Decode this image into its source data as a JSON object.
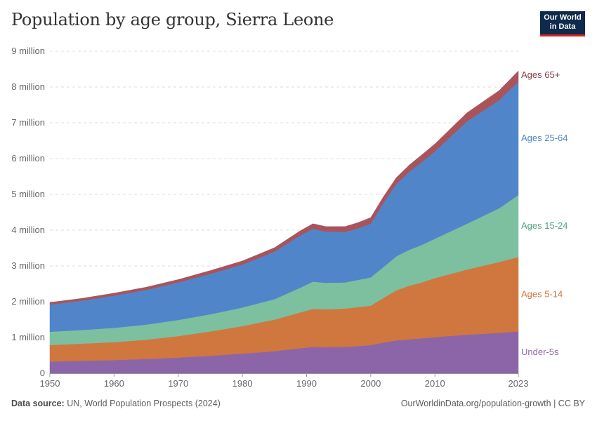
{
  "header": {
    "title": "Population by age group, Sierra Leone",
    "logo_line1": "Our World",
    "logo_line2": "in Data"
  },
  "footer": {
    "source_label": "Data source:",
    "source_text": "UN, World Population Prospects (2024)",
    "url": "OurWorldinData.org/population-growth | CC BY"
  },
  "colors": {
    "under5": "#8c65a8",
    "ages5_14": "#d0773f",
    "ages15_24": "#7cc0a0",
    "ages25_64": "#5086c9",
    "ages65": "#a8545a"
  },
  "chart_data": {
    "type": "area",
    "stacked": true,
    "title": "Population by age group, Sierra Leone",
    "x": [
      1950,
      1955,
      1960,
      1965,
      1970,
      1975,
      1980,
      1985,
      1989,
      1991,
      1993,
      1996,
      1998,
      2000,
      2002,
      2004,
      2006,
      2008,
      2010,
      2015,
      2020,
      2023
    ],
    "x_ticks": [
      1950,
      1960,
      1970,
      1980,
      1990,
      2000,
      2010,
      2023
    ],
    "y_ticks": [
      0,
      1000000,
      2000000,
      3000000,
      4000000,
      5000000,
      6000000,
      7000000,
      8000000,
      9000000
    ],
    "y_tick_labels": [
      "0",
      "1 million",
      "2 million",
      "3 million",
      "4 million",
      "5 million",
      "6 million",
      "7 million",
      "8 million",
      "9 million"
    ],
    "ylim": [
      0,
      9000000
    ],
    "xlim": [
      1950,
      2023
    ],
    "grid": true,
    "series": [
      {
        "name": "Under-5s",
        "key": "under5",
        "values": [
          330000,
          350000,
          370000,
          400000,
          440000,
          490000,
          550000,
          620000,
          700000,
          740000,
          730000,
          740000,
          760000,
          790000,
          860000,
          920000,
          950000,
          980000,
          1010000,
          1080000,
          1130000,
          1170000
        ]
      },
      {
        "name": "Ages 5-14",
        "key": "ages5_14",
        "values": [
          460000,
          480000,
          500000,
          540000,
          600000,
          680000,
          770000,
          880000,
          1000000,
          1060000,
          1060000,
          1070000,
          1090000,
          1100000,
          1250000,
          1400000,
          1500000,
          1560000,
          1650000,
          1820000,
          1980000,
          2080000
        ]
      },
      {
        "name": "Ages 15-24",
        "key": "ages5_14_placeholder_removed",
        "values": [
          370000,
          380000,
          400000,
          420000,
          450000,
          480000,
          520000,
          570000,
          690000,
          760000,
          740000,
          730000,
          760000,
          790000,
          860000,
          950000,
          1000000,
          1050000,
          1100000,
          1280000,
          1500000,
          1730000
        ]
      },
      {
        "name": "Ages 25-64",
        "key": "ages25_64",
        "values": [
          760000,
          820000,
          900000,
          970000,
          1050000,
          1130000,
          1200000,
          1330000,
          1460000,
          1480000,
          1430000,
          1410000,
          1440000,
          1500000,
          1800000,
          2020000,
          2180000,
          2320000,
          2440000,
          2860000,
          3020000,
          3170000
        ]
      },
      {
        "name": "Ages 65+",
        "key": "ages65",
        "values": [
          60000,
          65000,
          70000,
          75000,
          80000,
          90000,
          100000,
          110000,
          130000,
          140000,
          140000,
          150000,
          160000,
          170000,
          170000,
          180000,
          190000,
          200000,
          210000,
          240000,
          270000,
          300000
        ]
      }
    ]
  }
}
